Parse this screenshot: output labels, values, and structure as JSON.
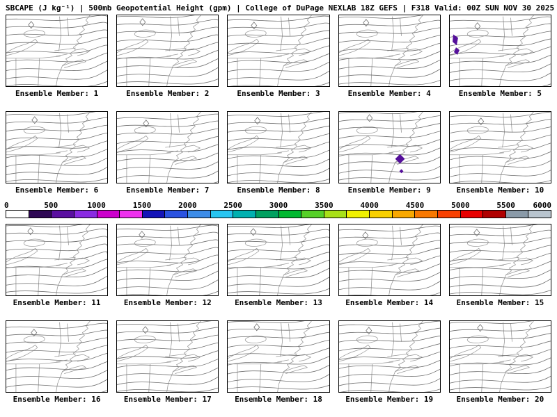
{
  "title": "SBCAPE (J kg⁻¹) | 500mb Geopotential Height (gpm) | College of DuPage NEXLAB 18Z GEFS | F318 Valid: 00Z SUN NOV 30 2025",
  "variable": "SBCAPE",
  "units": "J kg⁻¹",
  "overlay": "500mb Geopotential Height (gpm)",
  "source": "College of DuPage NEXLAB",
  "model_run": "18Z GEFS",
  "forecast_hour": "F318",
  "valid_time": "00Z SUN NOV 30 2025",
  "colorbar": {
    "min": 0,
    "max": 6000,
    "ticks": [
      "0",
      "500",
      "1000",
      "1500",
      "2000",
      "2500",
      "3000",
      "3500",
      "4000",
      "4500",
      "5000",
      "5500",
      "6000"
    ],
    "segment_colors": [
      "#FFFFFF",
      "#2E0854",
      "#5A0FA0",
      "#8A2BE2",
      "#CC00CC",
      "#EE30EE",
      "#1414B8",
      "#2A52E0",
      "#3C8CE8",
      "#27C4F0",
      "#00B0B0",
      "#00A060",
      "#00B830",
      "#56D028",
      "#A8E018",
      "#F0F000",
      "#F8D000",
      "#F8A800",
      "#F87800",
      "#F84000",
      "#E80000",
      "#B00000",
      "#8A9AA8",
      "#B8C4CE"
    ],
    "cape_highlight_color": "#55109B"
  },
  "members": [
    {
      "label": "Ensemble Member: 1",
      "cape_region": "none"
    },
    {
      "label": "Ensemble Member: 2",
      "cape_region": "none"
    },
    {
      "label": "Ensemble Member: 3",
      "cape_region": "none"
    },
    {
      "label": "Ensemble Member: 4",
      "cape_region": "none"
    },
    {
      "label": "Ensemble Member: 5",
      "cape_region": "nw"
    },
    {
      "label": "Ensemble Member: 6",
      "cape_region": "none"
    },
    {
      "label": "Ensemble Member: 7",
      "cape_region": "none"
    },
    {
      "label": "Ensemble Member: 8",
      "cape_region": "none"
    },
    {
      "label": "Ensemble Member: 9",
      "cape_region": "e"
    },
    {
      "label": "Ensemble Member: 10",
      "cape_region": "none"
    },
    {
      "label": "Ensemble Member: 11",
      "cape_region": "none"
    },
    {
      "label": "Ensemble Member: 12",
      "cape_region": "none"
    },
    {
      "label": "Ensemble Member: 13",
      "cape_region": "none"
    },
    {
      "label": "Ensemble Member: 14",
      "cape_region": "none"
    },
    {
      "label": "Ensemble Member: 15",
      "cape_region": "none"
    },
    {
      "label": "Ensemble Member: 16",
      "cape_region": "none"
    },
    {
      "label": "Ensemble Member: 17",
      "cape_region": "none"
    },
    {
      "label": "Ensemble Member: 18",
      "cape_region": "none"
    },
    {
      "label": "Ensemble Member: 19",
      "cape_region": "none"
    },
    {
      "label": "Ensemble Member: 20",
      "cape_region": "none"
    }
  ]
}
